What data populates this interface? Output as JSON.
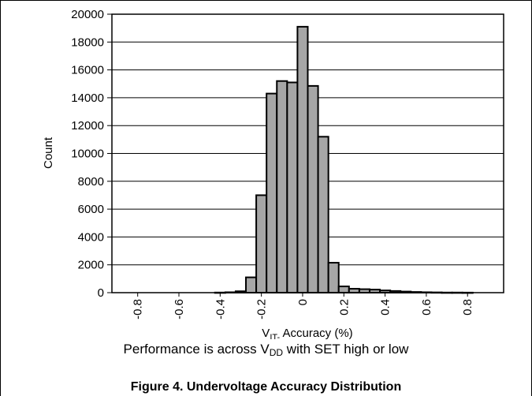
{
  "chart_data": {
    "type": "bar",
    "x": [
      -0.8,
      -0.75,
      -0.7,
      -0.65,
      -0.6,
      -0.55,
      -0.5,
      -0.45,
      -0.4,
      -0.35,
      -0.3,
      -0.25,
      -0.2,
      -0.15,
      -0.1,
      -0.05,
      0,
      0.05,
      0.1,
      0.15,
      0.2,
      0.25,
      0.3,
      0.35,
      0.4,
      0.45,
      0.5,
      0.55,
      0.6,
      0.65,
      0.7,
      0.75,
      0.8,
      0.85,
      0.9,
      0.95
    ],
    "bin_width": 0.025,
    "values": [
      0,
      0,
      0,
      0,
      0,
      0,
      0,
      0,
      10,
      30,
      100,
      1100,
      7000,
      14300,
      15200,
      15100,
      19100,
      14850,
      11200,
      2150,
      450,
      280,
      250,
      220,
      160,
      120,
      80,
      50,
      30,
      20,
      10,
      10,
      5,
      0,
      0,
      0
    ],
    "xlim": [
      -0.925,
      0.975
    ],
    "ylim": [
      0,
      20000
    ],
    "y_ticks": [
      "0",
      "2000",
      "4000",
      "6000",
      "8000",
      "10000",
      "12000",
      "14000",
      "16000",
      "18000",
      "20000"
    ],
    "x_ticks": [
      "-0.8",
      "-0.6",
      "-0.4",
      "-0.2",
      "0",
      "0.2",
      "0.4",
      "0.6",
      "0.8"
    ],
    "y_tick_values": [
      0,
      2000,
      4000,
      6000,
      8000,
      10000,
      12000,
      14000,
      16000,
      18000,
      20000
    ],
    "x_tick_values": [
      -0.8,
      -0.6,
      -0.4,
      -0.2,
      0,
      0.2,
      0.4,
      0.6,
      0.8
    ],
    "ylabel": "Count",
    "xlabel_main": "V",
    "xlabel_sub": "IT-",
    "xlabel_rest": " Accuracy (%)",
    "grid": "horizontal",
    "bar_color": "#a6a6a6",
    "edge_color": "#000000"
  },
  "note": {
    "prefix": "Performance is across V",
    "sub": "DD",
    "suffix": " with SET high or low"
  },
  "caption": "Figure 4. Undervoltage Accuracy Distribution"
}
